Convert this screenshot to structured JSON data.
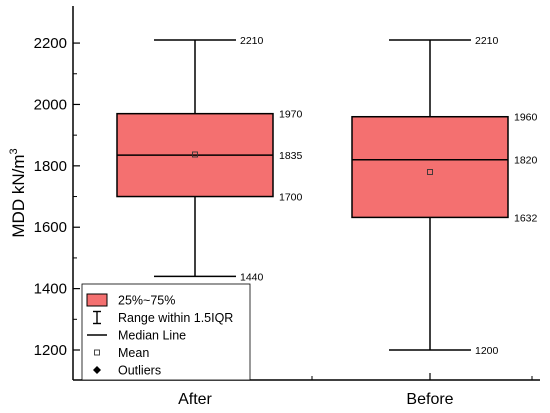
{
  "chart_data": {
    "type": "box",
    "ylabel": "MDD kN/m",
    "ylabel_superscript": "3",
    "ylim": [
      1150,
      2300
    ],
    "yticks": [
      1200,
      1400,
      1600,
      1800,
      2000,
      2200
    ],
    "ytick_labels": [
      "1200",
      "1400",
      "1600",
      "1800",
      "2000",
      "2200"
    ],
    "categories": [
      "After",
      "Before"
    ],
    "box_color": "#f47070",
    "boxes": [
      {
        "name": "After",
        "min": 1440,
        "q1": 1700,
        "median": 1835,
        "q3": 1970,
        "max": 2210,
        "mean": 1837,
        "labels": {
          "max": "2210",
          "q3": "1970",
          "median": "1835",
          "q1": "1700",
          "min": "1440"
        }
      },
      {
        "name": "Before",
        "min": 1200,
        "q1": 1632,
        "median": 1820,
        "q3": 1960,
        "max": 2210,
        "mean": 1780,
        "labels": {
          "max": "2210",
          "q3": "1960",
          "median": "1820",
          "q1": "1632",
          "min": "1200"
        }
      }
    ],
    "legend": {
      "placement": "bottom-left",
      "items": [
        {
          "symbol": "box",
          "label": "25%~75%"
        },
        {
          "symbol": "range",
          "label": "Range within 1.5IQR"
        },
        {
          "symbol": "line",
          "label": "Median Line"
        },
        {
          "symbol": "square",
          "label": "Mean"
        },
        {
          "symbol": "diamond",
          "label": "Outliers"
        }
      ]
    }
  }
}
